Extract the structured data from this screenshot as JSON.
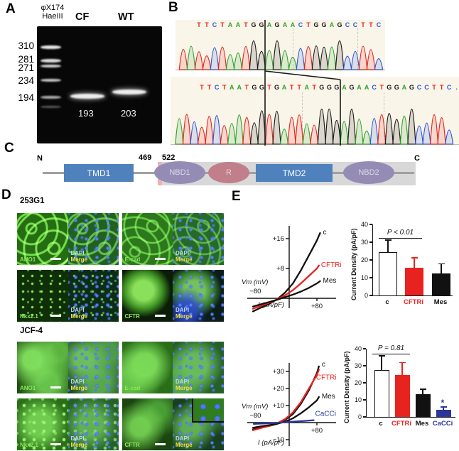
{
  "panels": {
    "a": "A",
    "b": "B",
    "c": "C",
    "d": "D",
    "e": "E"
  },
  "panelA": {
    "ladder_name_line1": "φX174",
    "ladder_name_line2": "HaeIII",
    "lane_cf": "CF",
    "lane_wt": "WT",
    "marker_sizes": [
      "310",
      "281",
      "271",
      "234",
      "194"
    ],
    "band_label_cf": "193",
    "band_label_wt": "203"
  },
  "panelB": {
    "base_colors": {
      "A": "#31a331",
      "C": "#2e58d8",
      "G": "#1c1c1c",
      "T": "#e8231f",
      ".": "#2e58d8"
    },
    "top_sequence": [
      "T",
      "T",
      "C",
      "T",
      "A",
      "A",
      "T",
      "G",
      "G",
      "A",
      "G",
      "A",
      "A",
      "C",
      "T",
      "G",
      "G",
      "A",
      "G",
      "C",
      "C",
      "T",
      "T",
      "C"
    ],
    "bottom_sequence": [
      "T",
      "T",
      "C",
      "T",
      "A",
      "A",
      "T",
      "G",
      "G",
      "T",
      "G",
      "A",
      "T",
      "T",
      "A",
      "T",
      "G",
      "G",
      "G",
      "A",
      "G",
      "A",
      "A",
      "C",
      "T",
      "G",
      "G",
      "A",
      "G",
      "C",
      "C",
      "T",
      "T",
      "C",
      "."
    ],
    "top_lead_peaks": [
      "T",
      "A"
    ],
    "bottom_lead_peaks": [
      "A",
      "T",
      "C"
    ],
    "insertion_note": "top cut after base 9; bottom insertion spans bases 10-19"
  },
  "panelC": {
    "n_term": "N",
    "c_term": "C",
    "pos1": "469",
    "pos2": "522",
    "tmd1": "TMD1",
    "nbd1": "NBD1",
    "r": "R",
    "tmd2": "TMD2",
    "nbd2": "NBD2"
  },
  "panelD": {
    "dapi": "DAPI",
    "merge": "Merge",
    "groups": [
      {
        "name": "253G1",
        "units": [
          {
            "stain": "ANO1",
            "variant": "v-net1",
            "scalebar": true,
            "dapiBig": false,
            "inset": false
          },
          {
            "stain": "E-cad",
            "variant": "v-net2",
            "scalebar": true,
            "dapiBig": false,
            "inset": false
          },
          {
            "stain": "Nkx2.1",
            "variant": "v-dots",
            "scalebar": true,
            "dapiBig": false,
            "inset": false
          },
          {
            "stain": "CFTR",
            "variant": "v-blob",
            "scalebar": true,
            "dapiBig": true,
            "inset": false
          }
        ]
      },
      {
        "name": "JCF-4",
        "units": [
          {
            "stain": "ANO1",
            "variant": "v-cloud1",
            "scalebar": true,
            "dapiBig": false,
            "inset": false
          },
          {
            "stain": "E-cad",
            "variant": "v-cloud2",
            "scalebar": false,
            "dapiBig": false,
            "inset": false
          },
          {
            "stain": "Nkx2.1",
            "variant": "v-clouddots",
            "scalebar": true,
            "dapiBig": false,
            "inset": false
          },
          {
            "stain": "CFTR",
            "variant": "v-cloud3",
            "scalebar": true,
            "dapiBig": false,
            "inset": true
          }
        ]
      }
    ]
  },
  "chart_data": [
    {
      "type": "line",
      "id": "iv_253g1",
      "xlabel": "Vm (mV)",
      "ylabel": "I (pA/pF)",
      "x_min_label": "−80",
      "x_max_label": "+80",
      "xlim": [
        -90,
        95
      ],
      "ylim": [
        -5,
        20
      ],
      "grid": false,
      "legend_position": "curve-ends",
      "y_ticks": [
        {
          "label": "+16",
          "v": 16
        },
        {
          "label": "+8",
          "v": 8
        }
      ],
      "series": [
        {
          "name": "c",
          "color": "#111111",
          "label_dx": 4,
          "label_dy": 2,
          "points": [
            [
              -80,
              -3.5
            ],
            [
              -60,
              -2.5
            ],
            [
              -40,
              -1.5
            ],
            [
              -20,
              -0.3
            ],
            [
              0,
              1.5
            ],
            [
              20,
              4
            ],
            [
              40,
              7.5
            ],
            [
              60,
              11.5
            ],
            [
              80,
              15.5
            ],
            [
              88,
              17.5
            ]
          ]
        },
        {
          "name": "CFTRi",
          "color": "#e8231f",
          "label_dx": 3,
          "label_dy": 2,
          "points": [
            [
              -80,
              -2.8
            ],
            [
              -60,
              -2.0
            ],
            [
              -40,
              -1.2
            ],
            [
              -20,
              -0.3
            ],
            [
              0,
              0.8
            ],
            [
              20,
              2.2
            ],
            [
              40,
              4
            ],
            [
              60,
              6
            ],
            [
              80,
              8
            ],
            [
              85,
              8.8
            ]
          ]
        },
        {
          "name": "Mes",
          "color": "#111111",
          "label_dx": 4,
          "label_dy": 2,
          "points": [
            [
              -80,
              -2.2
            ],
            [
              -60,
              -1.6
            ],
            [
              -40,
              -1.0
            ],
            [
              -20,
              -0.4
            ],
            [
              0,
              0.3
            ],
            [
              20,
              1
            ],
            [
              40,
              1.8
            ],
            [
              60,
              2.8
            ],
            [
              80,
              4
            ],
            [
              88,
              4.6
            ]
          ]
        }
      ]
    },
    {
      "type": "bar",
      "id": "bar_253g1",
      "ylabel": "Current Density (pA/pF)",
      "ylim": [
        0,
        40
      ],
      "yticks": [
        0,
        10,
        20,
        30,
        40
      ],
      "grid": false,
      "categories": [
        "c",
        "CFTRi",
        "Mes"
      ],
      "values": [
        24.5,
        15.5,
        12.5
      ],
      "errors": [
        6.5,
        5.5,
        5
      ],
      "bar_fills": [
        "#ffffff",
        "#e8231f",
        "#111111"
      ],
      "bar_edges": [
        "#111111",
        "#e8231f",
        "#111111"
      ],
      "label_colors": [
        "#111111",
        "#e8231f",
        "#111111"
      ],
      "annotation": {
        "text": "P < 0.01",
        "from": 0,
        "to": 1
      },
      "star_index": -1,
      "star_color": "#2b3699"
    },
    {
      "type": "line",
      "id": "iv_jcf4",
      "xlabel": "Vm (mV)",
      "ylabel": "I (pA/pF)",
      "x_min_label": "−80",
      "x_max_label": "+80",
      "xlim": [
        -90,
        95
      ],
      "ylim": [
        -12,
        35
      ],
      "grid": false,
      "legend_position": "curve-ends",
      "y_ticks": [
        {
          "label": "+30",
          "v": 30
        },
        {
          "label": "+20",
          "v": 20
        },
        {
          "label": "+10",
          "v": 10
        },
        {
          "label": "−10",
          "v": -10
        }
      ],
      "series": [
        {
          "name": "c",
          "color": "#111111",
          "label_dx": 4,
          "label_dy": 0,
          "points": [
            [
              -80,
              -4
            ],
            [
              -60,
              -3
            ],
            [
              -40,
              -2
            ],
            [
              -20,
              -0.8
            ],
            [
              0,
              1.5
            ],
            [
              20,
              5
            ],
            [
              40,
              11
            ],
            [
              60,
              19
            ],
            [
              80,
              29
            ],
            [
              85,
              33
            ]
          ]
        },
        {
          "name": "CFTRi",
          "color": "#e8231f",
          "label_dx": -4,
          "label_dy": 14,
          "points": [
            [
              -80,
              -4.5
            ],
            [
              -60,
              -3.2
            ],
            [
              -40,
              -2
            ],
            [
              -20,
              -0.5
            ],
            [
              0,
              2
            ],
            [
              20,
              6
            ],
            [
              40,
              12
            ],
            [
              60,
              20
            ],
            [
              80,
              28
            ],
            [
              85,
              31
            ]
          ]
        },
        {
          "name": "Mes",
          "color": "#111111",
          "label_dx": 4,
          "label_dy": 2,
          "points": [
            [
              -80,
              -3
            ],
            [
              -60,
              -2.2
            ],
            [
              -40,
              -1.5
            ],
            [
              -20,
              -0.7
            ],
            [
              0,
              0.5
            ],
            [
              20,
              2.5
            ],
            [
              40,
              5.5
            ],
            [
              60,
              9
            ],
            [
              80,
              13
            ],
            [
              85,
              15
            ]
          ]
        },
        {
          "name": "CaCCi",
          "color": "#2b3699",
          "label_dx": 2,
          "label_dy": -6,
          "points": [
            [
              -78,
              -0.8
            ],
            [
              -40,
              -0.4
            ],
            [
              -10,
              0
            ],
            [
              20,
              0.6
            ],
            [
              50,
              1
            ],
            [
              72,
              1.4
            ]
          ]
        }
      ]
    },
    {
      "type": "bar",
      "id": "bar_jcf4",
      "ylabel": "Current Density (pA/pF)",
      "ylim": [
        0,
        40
      ],
      "yticks": [
        0,
        10,
        20,
        30,
        40
      ],
      "grid": false,
      "categories": [
        "c",
        "CFTRi",
        "Mes",
        "CaCCi"
      ],
      "values": [
        27.5,
        24.5,
        13.5,
        4
      ],
      "errors": [
        8,
        7,
        2.5,
        1.5
      ],
      "bar_fills": [
        "#ffffff",
        "#e8231f",
        "#111111",
        "#2b3699"
      ],
      "bar_edges": [
        "#111111",
        "#e8231f",
        "#111111",
        "#2b3699"
      ],
      "label_colors": [
        "#111111",
        "#e8231f",
        "#111111",
        "#2b3699"
      ],
      "annotation": {
        "text": "P = 0.81",
        "from": 0,
        "to": 1
      },
      "star_index": 3,
      "star_color": "#2b3699",
      "star": "*"
    }
  ]
}
